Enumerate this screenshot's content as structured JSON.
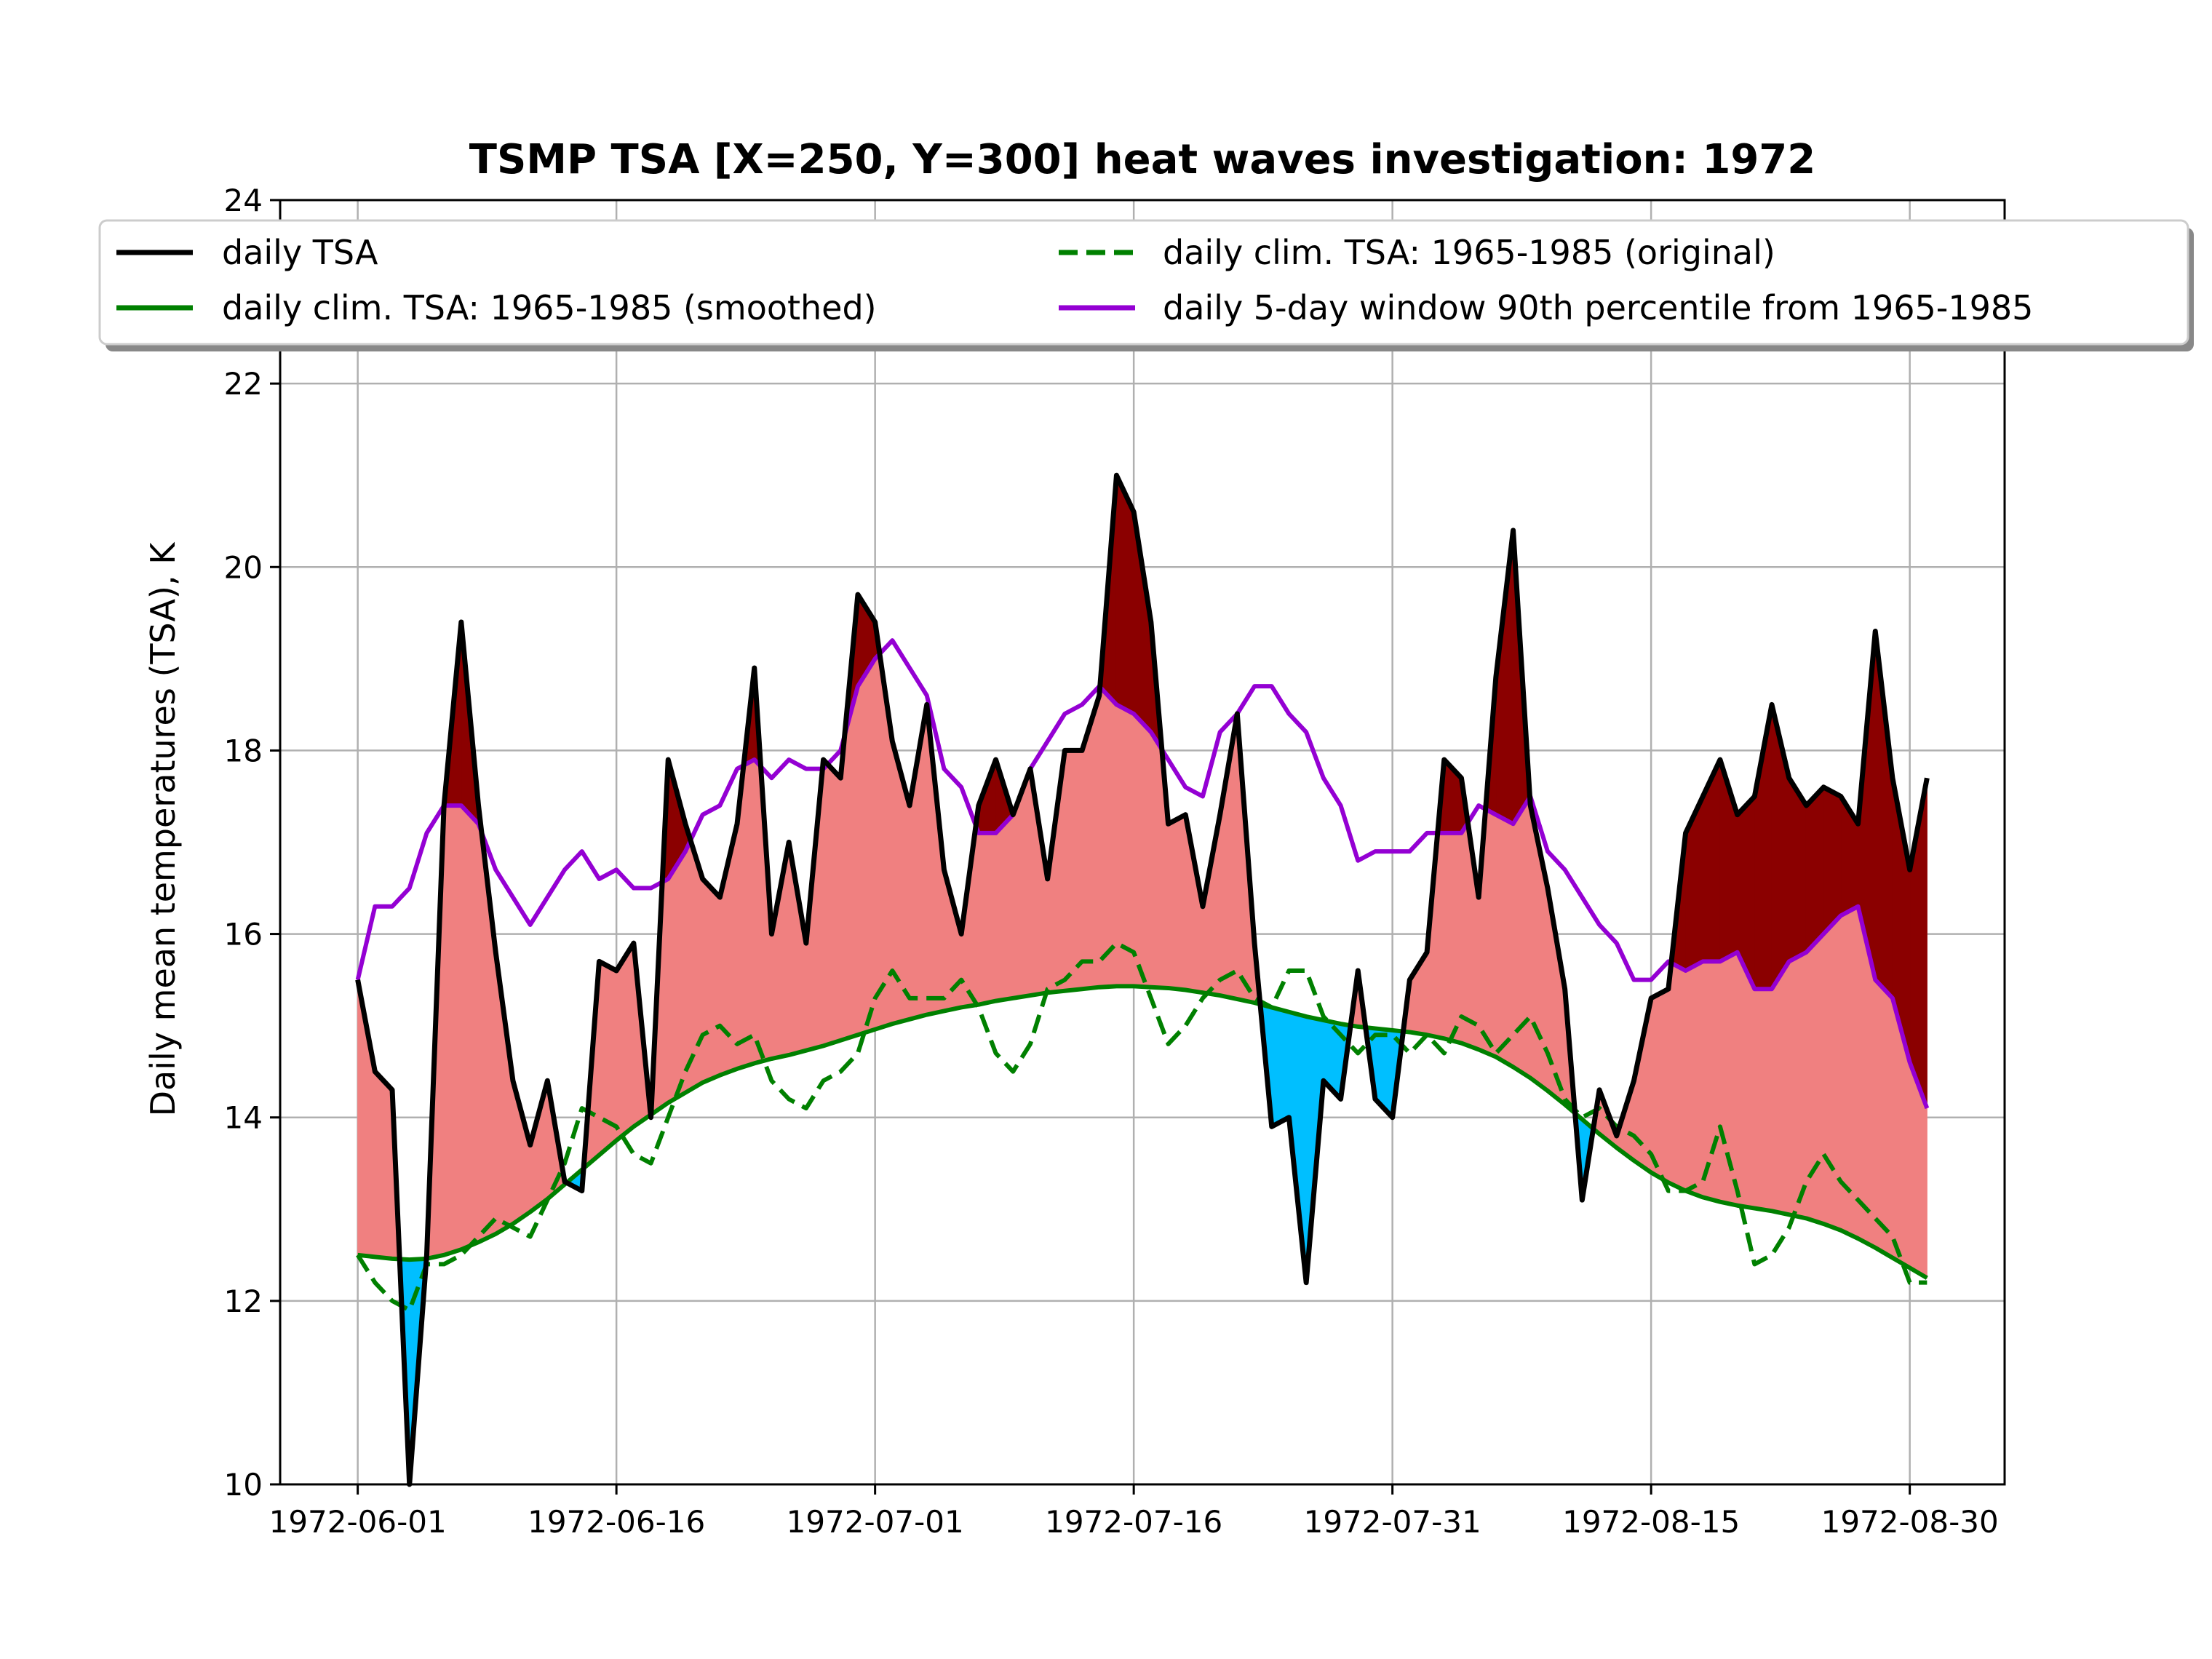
{
  "chart_data": {
    "type": "line",
    "title": "TSMP TSA [X=250, Y=300] heat waves investigation: 1972",
    "xlabel": "",
    "ylabel": "Daily mean temperatures (TSA), K",
    "x_start": "1972-06-01",
    "xlim_days": [
      -4.5,
      95.5
    ],
    "ylim": [
      10,
      24
    ],
    "yticks": [
      "10",
      "12",
      "14",
      "16",
      "18",
      "20",
      "22",
      "24"
    ],
    "xticks": [
      "1972-06-01",
      "1972-06-16",
      "1972-07-01",
      "1972-07-16",
      "1972-07-31",
      "1972-08-15",
      "1972-08-30"
    ],
    "grid": true,
    "legend_position": "top",
    "series": [
      {
        "name": "daily TSA",
        "color": "#000000",
        "style": "solid",
        "values": [
          15.5,
          14.5,
          14.3,
          10.0,
          12.5,
          17.4,
          19.4,
          17.4,
          15.8,
          14.4,
          13.7,
          14.4,
          13.3,
          13.2,
          15.7,
          15.6,
          15.9,
          14.0,
          17.9,
          17.2,
          16.6,
          16.4,
          17.2,
          18.9,
          16.0,
          17.0,
          15.9,
          17.9,
          17.7,
          19.7,
          19.4,
          18.1,
          17.4,
          18.5,
          16.7,
          16.0,
          17.4,
          17.9,
          17.3,
          17.8,
          16.6,
          18.0,
          18.0,
          18.6,
          21.0,
          20.6,
          19.4,
          17.2,
          17.3,
          16.3,
          17.3,
          18.4,
          15.9,
          13.9,
          14.0,
          12.2,
          14.4,
          14.2,
          15.6,
          14.2,
          14.0,
          15.5,
          15.8,
          17.9,
          17.7,
          16.4,
          18.8,
          20.4,
          17.4,
          16.5,
          15.4,
          13.1,
          14.3,
          13.8,
          14.4,
          15.3,
          15.4,
          17.1,
          17.5,
          17.9,
          17.3,
          17.5,
          18.5,
          17.7,
          17.4,
          17.6,
          17.5,
          17.2,
          19.3,
          17.7,
          16.7,
          17.7
        ]
      },
      {
        "name": "daily clim. TSA: 1965-1985 (original)",
        "color": "#008000",
        "style": "dashed",
        "values": [
          12.5,
          12.2,
          12.0,
          11.9,
          12.4,
          12.4,
          12.5,
          12.7,
          12.9,
          12.8,
          12.7,
          13.1,
          13.5,
          14.1,
          14.0,
          13.9,
          13.6,
          13.5,
          14.0,
          14.5,
          14.9,
          15.0,
          14.8,
          14.9,
          14.4,
          14.2,
          14.1,
          14.4,
          14.5,
          14.7,
          15.3,
          15.6,
          15.3,
          15.3,
          15.3,
          15.5,
          15.2,
          14.7,
          14.5,
          14.8,
          15.4,
          15.5,
          15.7,
          15.7,
          15.9,
          15.8,
          15.3,
          14.8,
          15.0,
          15.3,
          15.5,
          15.6,
          15.3,
          15.2,
          15.6,
          15.6,
          15.1,
          14.9,
          14.7,
          14.9,
          14.9,
          14.7,
          14.9,
          14.7,
          15.1,
          15.0,
          14.7,
          14.9,
          15.1,
          14.7,
          14.2,
          14.0,
          14.1,
          13.9,
          13.8,
          13.6,
          13.2,
          13.2,
          13.3,
          13.9,
          13.2,
          12.4,
          12.5,
          12.8,
          13.3,
          13.6,
          13.3,
          13.1,
          12.9,
          12.7,
          12.2,
          12.2
        ]
      },
      {
        "name": "daily clim. TSA: 1965-1985 (smoothed)",
        "color": "#008000",
        "style": "solid",
        "values": [
          12.5,
          12.48,
          12.46,
          12.45,
          12.46,
          12.5,
          12.56,
          12.64,
          12.73,
          12.84,
          12.97,
          13.11,
          13.27,
          13.43,
          13.59,
          13.75,
          13.9,
          14.03,
          14.16,
          14.27,
          14.38,
          14.46,
          14.53,
          14.59,
          14.64,
          14.68,
          14.73,
          14.78,
          14.84,
          14.9,
          14.96,
          15.02,
          15.07,
          15.12,
          15.16,
          15.2,
          15.23,
          15.27,
          15.3,
          15.33,
          15.36,
          15.38,
          15.4,
          15.42,
          15.43,
          15.43,
          15.42,
          15.41,
          15.39,
          15.36,
          15.33,
          15.29,
          15.25,
          15.2,
          15.15,
          15.1,
          15.06,
          15.02,
          14.99,
          14.97,
          14.95,
          14.93,
          14.9,
          14.86,
          14.81,
          14.74,
          14.66,
          14.55,
          14.43,
          14.29,
          14.14,
          13.98,
          13.82,
          13.67,
          13.53,
          13.4,
          13.29,
          13.2,
          13.13,
          13.08,
          13.04,
          13.01,
          12.98,
          12.94,
          12.9,
          12.84,
          12.77,
          12.68,
          12.58,
          12.47,
          12.36,
          12.25
        ]
      },
      {
        "name": "daily 5-day window 90th percentile from 1965-1985",
        "color": "#9400D3",
        "style": "solid",
        "values": [
          15.5,
          16.3,
          16.3,
          16.5,
          17.1,
          17.4,
          17.4,
          17.2,
          16.7,
          16.4,
          16.1,
          16.4,
          16.7,
          16.9,
          16.6,
          16.7,
          16.5,
          16.5,
          16.6,
          16.9,
          17.3,
          17.4,
          17.8,
          17.9,
          17.7,
          17.9,
          17.8,
          17.8,
          18.0,
          18.7,
          19.0,
          19.2,
          18.9,
          18.6,
          17.8,
          17.6,
          17.1,
          17.1,
          17.3,
          17.8,
          18.1,
          18.4,
          18.5,
          18.7,
          18.5,
          18.4,
          18.2,
          17.9,
          17.6,
          17.5,
          18.2,
          18.4,
          18.7,
          18.7,
          18.4,
          18.2,
          17.7,
          17.4,
          16.8,
          16.9,
          16.9,
          16.9,
          17.1,
          17.1,
          17.1,
          17.4,
          17.3,
          17.2,
          17.5,
          16.9,
          16.7,
          16.4,
          16.1,
          15.9,
          15.5,
          15.5,
          15.7,
          15.6,
          15.7,
          15.7,
          15.8,
          15.4,
          15.4,
          15.7,
          15.8,
          16.0,
          16.2,
          16.3,
          15.5,
          15.3,
          14.6,
          14.1
        ]
      }
    ],
    "fill_colors": {
      "above_percentile": "#8B0000",
      "above_climatology": "#F08080",
      "below_climatology": "#00BFFF"
    }
  }
}
